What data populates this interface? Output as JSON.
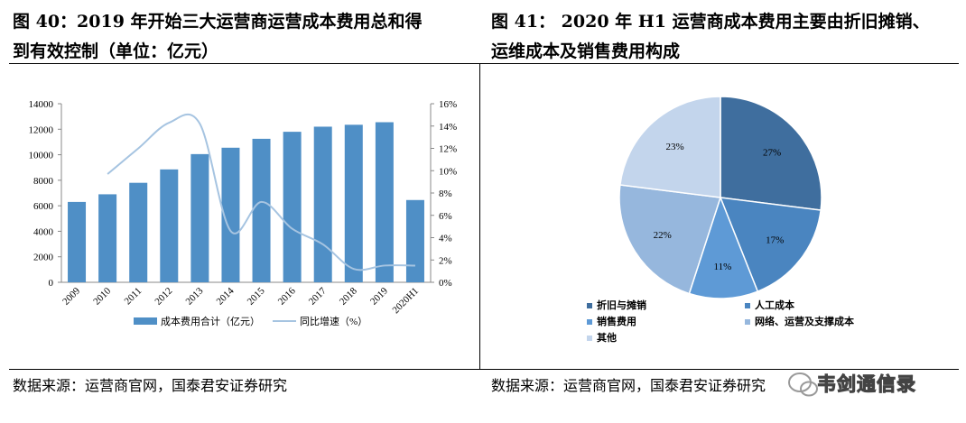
{
  "left_panel": {
    "title_line1": "图 40：2019 年开始三大运营商运营成本费用总和得",
    "title_line2": "到有效控制（单位：亿元）",
    "source": "数据来源：运营商官网，国泰君安证券研究"
  },
  "right_panel": {
    "title_line1": "图 41：  2020 年 H1 运营商成本费用主要由折旧摊销、",
    "title_line2": "运维成本及销售费用构成",
    "source": "数据来源：运营商官网，国泰君安证券研究"
  },
  "watermark": {
    "text": "韦剑通信录",
    "icon": "wechat-icon"
  },
  "chart_data": [
    {
      "type": "bar",
      "categories": [
        "2009",
        "2010",
        "2011",
        "2012",
        "2013",
        "2014",
        "2015",
        "2016",
        "2017",
        "2018",
        "2019",
        "2020H1"
      ],
      "series": [
        {
          "name": "成本费用合计（亿元）",
          "axis": "left",
          "kind": "bar",
          "color": "#4f8fc6",
          "values": [
            6300,
            6900,
            7800,
            8850,
            10050,
            10550,
            11250,
            11800,
            12200,
            12350,
            12550,
            6450
          ]
        },
        {
          "name": "同比增速（%）",
          "axis": "right",
          "kind": "line",
          "color": "#a6c4e1",
          "values": [
            null,
            9.7,
            12.0,
            14.3,
            14.2,
            4.6,
            7.2,
            4.8,
            3.4,
            1.2,
            1.5,
            1.5
          ]
        }
      ],
      "y_left": {
        "min": 0,
        "max": 14000,
        "ticks": [
          "0",
          "2000",
          "4000",
          "6000",
          "8000",
          "10000",
          "12000",
          "14000"
        ]
      },
      "y_right": {
        "min": 0,
        "max": 16,
        "ticks": [
          "0%",
          "2%",
          "4%",
          "6%",
          "8%",
          "10%",
          "12%",
          "14%",
          "16%"
        ]
      },
      "grid": false,
      "legend_position": "bottom"
    },
    {
      "type": "pie",
      "categories": [
        "折旧与摊销",
        "人工成本",
        "销售费用",
        "网络、运营及支撑成本",
        "其他"
      ],
      "values": [
        27,
        17,
        11,
        22,
        23
      ],
      "labels": [
        "27%",
        "17%",
        "11%",
        "22%",
        "23%"
      ],
      "colors": [
        "#3f6e9e",
        "#4a85c0",
        "#5e9ad6",
        "#96b7dd",
        "#c3d5ec"
      ],
      "legend_position": "bottom"
    }
  ]
}
